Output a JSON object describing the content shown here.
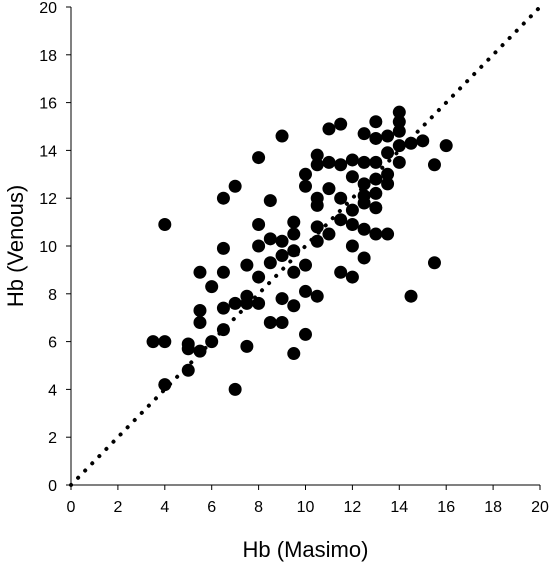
{
  "chart_data": {
    "type": "scatter",
    "title": "",
    "xlabel": "Hb (Masimo)",
    "ylabel": "Hb (Venous)",
    "xlim": [
      0,
      20
    ],
    "ylim": [
      0,
      20
    ],
    "x_ticks": [
      "0",
      "2",
      "4",
      "6",
      "8",
      "10",
      "12",
      "14",
      "16",
      "18",
      "20"
    ],
    "y_ticks": [
      "0",
      "2",
      "4",
      "6",
      "8",
      "10",
      "12",
      "14",
      "16",
      "18",
      "20"
    ],
    "grid": false,
    "legend": "none",
    "reference_line": {
      "style": "dotted",
      "from": [
        0,
        0
      ],
      "to": [
        20,
        20
      ]
    },
    "marker_color": "#000000",
    "points": [
      [
        3.5,
        6.0
      ],
      [
        4.0,
        6.0
      ],
      [
        4.0,
        10.9
      ],
      [
        4.0,
        4.2
      ],
      [
        5.0,
        5.9
      ],
      [
        5.0,
        5.7
      ],
      [
        5.0,
        4.8
      ],
      [
        5.5,
        8.9
      ],
      [
        5.5,
        7.3
      ],
      [
        5.5,
        6.8
      ],
      [
        5.5,
        5.6
      ],
      [
        6.0,
        8.3
      ],
      [
        6.0,
        6.0
      ],
      [
        6.5,
        12.0
      ],
      [
        6.5,
        9.9
      ],
      [
        6.5,
        8.9
      ],
      [
        6.5,
        7.4
      ],
      [
        6.5,
        6.5
      ],
      [
        7.0,
        12.5
      ],
      [
        7.0,
        7.6
      ],
      [
        7.0,
        4.0
      ],
      [
        7.5,
        9.2
      ],
      [
        7.5,
        7.9
      ],
      [
        7.5,
        7.6
      ],
      [
        7.5,
        5.8
      ],
      [
        8.0,
        13.7
      ],
      [
        8.0,
        10.9
      ],
      [
        8.0,
        10.0
      ],
      [
        8.0,
        8.7
      ],
      [
        8.0,
        7.6
      ],
      [
        8.5,
        11.9
      ],
      [
        8.5,
        10.3
      ],
      [
        8.5,
        9.3
      ],
      [
        8.5,
        6.8
      ],
      [
        9.0,
        14.6
      ],
      [
        9.0,
        10.2
      ],
      [
        9.0,
        9.6
      ],
      [
        9.0,
        7.8
      ],
      [
        9.0,
        6.8
      ],
      [
        9.5,
        11.0
      ],
      [
        9.5,
        10.5
      ],
      [
        9.5,
        9.8
      ],
      [
        9.5,
        8.9
      ],
      [
        9.5,
        7.5
      ],
      [
        9.5,
        5.5
      ],
      [
        10.0,
        13.0
      ],
      [
        10.0,
        12.5
      ],
      [
        10.0,
        9.2
      ],
      [
        10.0,
        8.1
      ],
      [
        10.0,
        6.3
      ],
      [
        10.5,
        13.8
      ],
      [
        10.5,
        13.4
      ],
      [
        10.5,
        12.0
      ],
      [
        10.5,
        11.7
      ],
      [
        10.5,
        10.8
      ],
      [
        10.5,
        10.2
      ],
      [
        10.5,
        7.9
      ],
      [
        11.0,
        14.9
      ],
      [
        11.0,
        13.5
      ],
      [
        11.0,
        12.4
      ],
      [
        11.0,
        10.5
      ],
      [
        11.5,
        15.1
      ],
      [
        11.5,
        13.4
      ],
      [
        11.5,
        12.0
      ],
      [
        11.5,
        11.1
      ],
      [
        11.5,
        8.9
      ],
      [
        12.0,
        13.6
      ],
      [
        12.0,
        12.9
      ],
      [
        12.0,
        11.5
      ],
      [
        12.0,
        10.9
      ],
      [
        12.0,
        10.0
      ],
      [
        12.0,
        8.7
      ],
      [
        12.5,
        14.7
      ],
      [
        12.5,
        13.5
      ],
      [
        12.5,
        12.6
      ],
      [
        12.5,
        12.1
      ],
      [
        12.5,
        11.8
      ],
      [
        12.5,
        10.7
      ],
      [
        12.5,
        9.5
      ],
      [
        13.0,
        15.2
      ],
      [
        13.0,
        14.5
      ],
      [
        13.0,
        13.5
      ],
      [
        13.0,
        12.8
      ],
      [
        13.0,
        12.2
      ],
      [
        13.0,
        11.6
      ],
      [
        13.0,
        10.5
      ],
      [
        13.5,
        14.6
      ],
      [
        13.5,
        13.9
      ],
      [
        13.5,
        13.0
      ],
      [
        13.5,
        12.6
      ],
      [
        13.5,
        10.5
      ],
      [
        14.0,
        15.6
      ],
      [
        14.0,
        15.2
      ],
      [
        14.0,
        14.8
      ],
      [
        14.0,
        14.2
      ],
      [
        14.0,
        13.5
      ],
      [
        14.5,
        14.3
      ],
      [
        14.5,
        7.9
      ],
      [
        15.0,
        14.4
      ],
      [
        15.5,
        13.4
      ],
      [
        15.5,
        9.3
      ],
      [
        16.0,
        14.2
      ]
    ]
  }
}
